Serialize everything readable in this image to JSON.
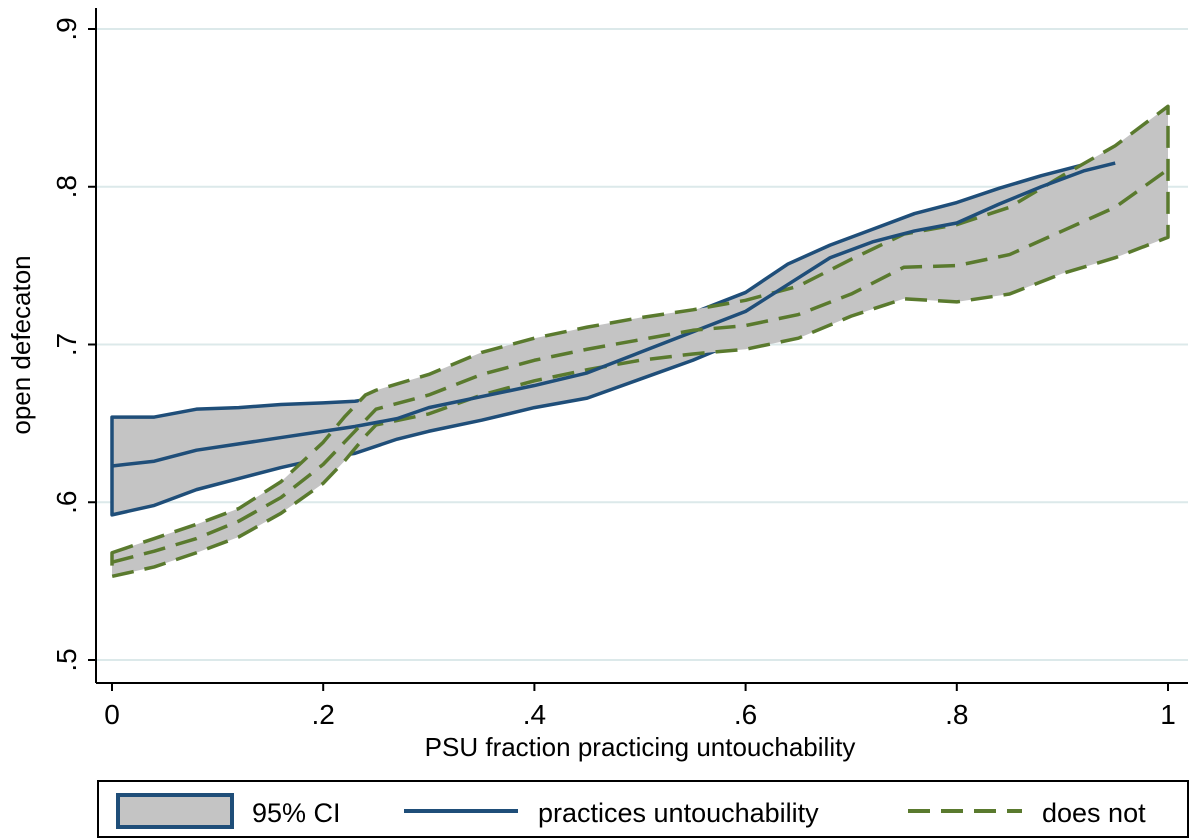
{
  "chart_data": {
    "type": "line",
    "title": "",
    "xlabel": "PSU fraction practicing untouchability",
    "ylabel": "open defecaton",
    "xlim": [
      0,
      1
    ],
    "ylim": [
      0.5,
      0.9
    ],
    "xticks": [
      0,
      0.2,
      0.4,
      0.6,
      0.8,
      1
    ],
    "xtick_labels": [
      "0",
      ".2",
      ".4",
      ".6",
      ".8",
      "1"
    ],
    "yticks": [
      0.5,
      0.6,
      0.7,
      0.8,
      0.9
    ],
    "ytick_labels": [
      ".5",
      ".6",
      ".7",
      ".8",
      ".9"
    ],
    "grid": "horizontal",
    "legend_position": "bottom",
    "series": [
      {
        "name": "practices untouchability",
        "color": "#1f4e79",
        "style": "solid",
        "x": [
          0,
          0.04,
          0.08,
          0.12,
          0.16,
          0.2,
          0.23,
          0.27,
          0.3,
          0.35,
          0.4,
          0.45,
          0.5,
          0.55,
          0.6,
          0.64,
          0.68,
          0.72,
          0.76,
          0.8,
          0.84,
          0.88,
          0.92,
          0.95
        ],
        "values": [
          0.623,
          0.626,
          0.633,
          0.637,
          0.641,
          0.645,
          0.648,
          0.653,
          0.66,
          0.667,
          0.674,
          0.682,
          0.695,
          0.708,
          0.721,
          0.738,
          0.755,
          0.765,
          0.772,
          0.777,
          0.789,
          0.8,
          0.81,
          0.815
        ],
        "ci_lower": [
          0.592,
          0.598,
          0.608,
          0.615,
          0.622,
          0.628,
          0.631,
          0.64,
          0.645,
          0.652,
          0.66,
          0.666,
          0.678,
          0.69,
          0.704,
          0.72,
          0.735,
          0.745,
          0.758,
          0.765,
          0.777,
          0.788,
          0.803,
          0.815
        ],
        "ci_upper": [
          0.654,
          0.654,
          0.659,
          0.66,
          0.662,
          0.663,
          0.664,
          0.668,
          0.673,
          0.683,
          0.69,
          0.7,
          0.71,
          0.72,
          0.733,
          0.751,
          0.763,
          0.773,
          0.783,
          0.79,
          0.799,
          0.807,
          0.814,
          0.818
        ]
      },
      {
        "name": "does not",
        "color": "#5a7a2e",
        "style": "dashed",
        "x": [
          0,
          0.04,
          0.08,
          0.12,
          0.16,
          0.2,
          0.22,
          0.24,
          0.25,
          0.3,
          0.35,
          0.4,
          0.45,
          0.5,
          0.55,
          0.6,
          0.65,
          0.7,
          0.75,
          0.8,
          0.85,
          0.9,
          0.95,
          1
        ],
        "values": [
          0.562,
          0.569,
          0.577,
          0.588,
          0.603,
          0.624,
          0.638,
          0.652,
          0.659,
          0.668,
          0.681,
          0.69,
          0.697,
          0.703,
          0.709,
          0.712,
          0.719,
          0.732,
          0.749,
          0.75,
          0.757,
          0.772,
          0.787,
          0.811
        ],
        "ci_lower": [
          0.553,
          0.559,
          0.568,
          0.578,
          0.593,
          0.612,
          0.626,
          0.642,
          0.649,
          0.656,
          0.668,
          0.677,
          0.684,
          0.69,
          0.694,
          0.697,
          0.704,
          0.718,
          0.729,
          0.727,
          0.732,
          0.745,
          0.755,
          0.768
        ],
        "ci_upper": [
          0.568,
          0.577,
          0.586,
          0.596,
          0.613,
          0.638,
          0.654,
          0.668,
          0.671,
          0.681,
          0.695,
          0.704,
          0.711,
          0.717,
          0.722,
          0.728,
          0.737,
          0.754,
          0.77,
          0.776,
          0.787,
          0.807,
          0.826,
          0.851
        ]
      }
    ],
    "legend": [
      {
        "label": "95% CI",
        "kind": "area"
      },
      {
        "label": "practices untouchability",
        "kind": "solid"
      },
      {
        "label": "does not",
        "kind": "dashed"
      }
    ]
  },
  "colors": {
    "ci_fill": "#c4c4c4",
    "grid": "#dce9ea",
    "axis": "#000000"
  }
}
